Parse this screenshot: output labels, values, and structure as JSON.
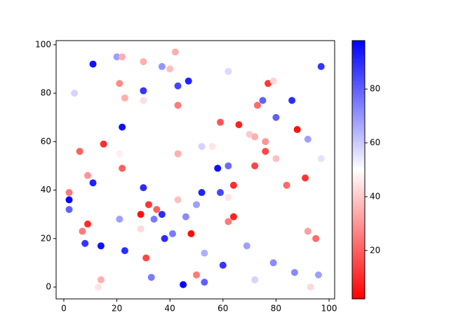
{
  "chart_data": {
    "type": "scatter",
    "cmap": "bwr_r",
    "clim": [
      2,
      98
    ],
    "xlim": [
      -2.9,
      102.1
    ],
    "ylim": [
      -4.9,
      101.7
    ],
    "xticks": [
      0,
      20,
      40,
      60,
      80,
      100
    ],
    "yticks": [
      0,
      20,
      40,
      60,
      80,
      100
    ],
    "cticks": [
      20,
      40,
      60,
      80
    ],
    "x": [
      11,
      20,
      22,
      4,
      30,
      37,
      40,
      42,
      43,
      47,
      62,
      97,
      21,
      23,
      30,
      30,
      43,
      77,
      79,
      75,
      86,
      73,
      80,
      59,
      66,
      22,
      88,
      70,
      72,
      92,
      15,
      76,
      52,
      56,
      6,
      76,
      21,
      43,
      80,
      97,
      62,
      72,
      22,
      58,
      9,
      91,
      11,
      84,
      64,
      30,
      2,
      52,
      59,
      62,
      2,
      43,
      32,
      50,
      2,
      35,
      37,
      29,
      34,
      21,
      46,
      64,
      62,
      9,
      29,
      7,
      92,
      41,
      48,
      38,
      95,
      8,
      14,
      69,
      23,
      53,
      31,
      60,
      79,
      87,
      50,
      96,
      33,
      14,
      72,
      53,
      45,
      13,
      93
    ],
    "y": [
      92,
      95,
      95,
      80,
      93,
      91,
      90,
      97,
      83,
      85,
      89,
      91,
      84,
      78,
      81,
      77,
      75,
      84,
      85,
      77,
      77,
      75,
      70,
      68,
      67,
      66,
      65,
      63,
      62,
      61,
      59,
      60,
      58,
      58,
      56,
      56,
      55,
      55,
      53,
      53,
      50,
      50,
      49,
      49,
      46,
      45,
      43,
      42,
      42,
      41,
      39,
      39,
      39,
      37,
      36,
      36,
      34,
      34,
      32,
      32,
      30,
      30,
      28,
      28,
      29,
      29,
      27,
      26,
      24,
      23,
      23,
      22,
      22,
      20,
      20,
      18,
      17,
      17,
      15,
      14,
      12,
      9,
      10,
      6,
      5,
      5,
      4,
      3,
      3,
      2,
      1,
      0,
      0
    ],
    "c": [
      95,
      68,
      35,
      58,
      35,
      70,
      38,
      35,
      85,
      92,
      57,
      88,
      28,
      35,
      88,
      44,
      25,
      12,
      42,
      80,
      90,
      22,
      80,
      18,
      8,
      95,
      5,
      40,
      35,
      68,
      10,
      30,
      58,
      45,
      20,
      15,
      47,
      35,
      38,
      55,
      78,
      15,
      20,
      95,
      30,
      12,
      92,
      22,
      10,
      90,
      25,
      92,
      85,
      45,
      97,
      38,
      12,
      68,
      80,
      20,
      90,
      5,
      75,
      68,
      72,
      8,
      25,
      10,
      43,
      25,
      32,
      75,
      4,
      90,
      22,
      88,
      95,
      68,
      90,
      65,
      15,
      88,
      72,
      72,
      25,
      68,
      75,
      35,
      58,
      80,
      97,
      45,
      43
    ]
  }
}
